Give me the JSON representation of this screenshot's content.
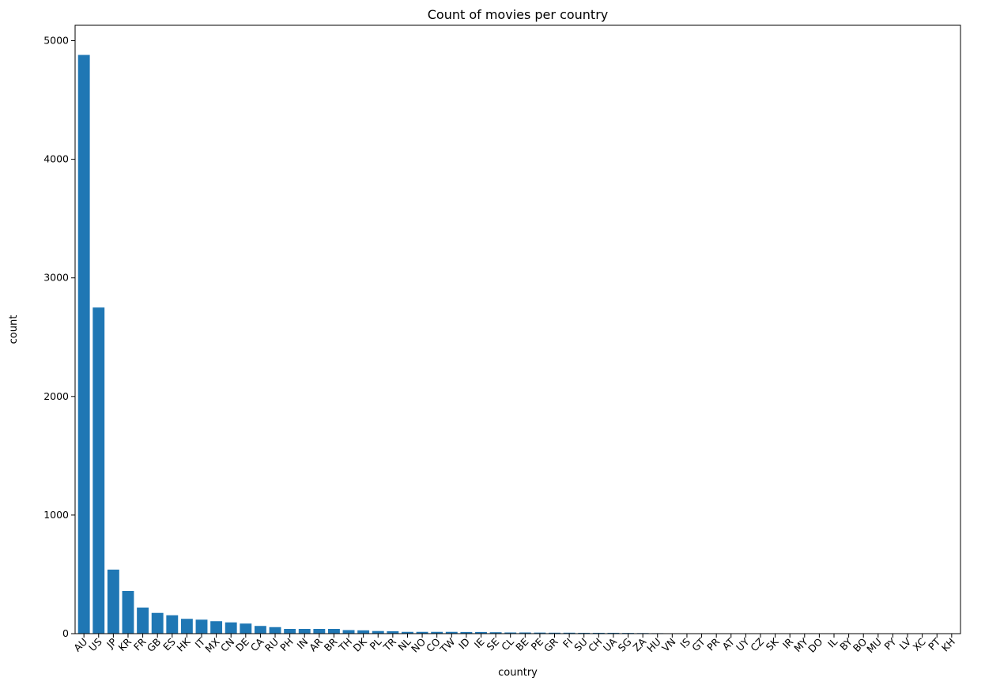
{
  "chart_data": {
    "type": "bar",
    "title": "Count of movies per country",
    "xlabel": "country",
    "ylabel": "count",
    "ylim": [
      0,
      5130
    ],
    "yticks": [
      0,
      1000,
      2000,
      3000,
      4000,
      5000
    ],
    "bar_color": "#1f77b4",
    "categories": [
      "AU",
      "US",
      "JP",
      "KR",
      "FR",
      "GB",
      "ES",
      "HK",
      "IT",
      "MX",
      "CN",
      "DE",
      "CA",
      "RU",
      "PH",
      "IN",
      "AR",
      "BR",
      "TH",
      "DK",
      "PL",
      "TR",
      "NL",
      "NO",
      "CO",
      "TW",
      "ID",
      "IE",
      "SE",
      "CL",
      "BE",
      "PE",
      "GR",
      "FI",
      "SU",
      "CH",
      "UA",
      "SG",
      "ZA",
      "HU",
      "VN",
      "IS",
      "GT",
      "PR",
      "AT",
      "UY",
      "CZ",
      "SK",
      "IR",
      "MY",
      "DO",
      "IL",
      "BY",
      "BO",
      "MU",
      "PY",
      "LV",
      "XC",
      "PT",
      "KH"
    ],
    "values": [
      4880,
      2750,
      540,
      360,
      220,
      175,
      155,
      125,
      118,
      105,
      95,
      85,
      65,
      55,
      40,
      40,
      40,
      40,
      30,
      28,
      22,
      20,
      15,
      15,
      15,
      15,
      14,
      14,
      12,
      10,
      10,
      9,
      8,
      8,
      7,
      7,
      7,
      6,
      5,
      4,
      3,
      3,
      3,
      3,
      2,
      2,
      2,
      2,
      2,
      2,
      2,
      2,
      1,
      1,
      1,
      1,
      1,
      1,
      1,
      1
    ]
  }
}
